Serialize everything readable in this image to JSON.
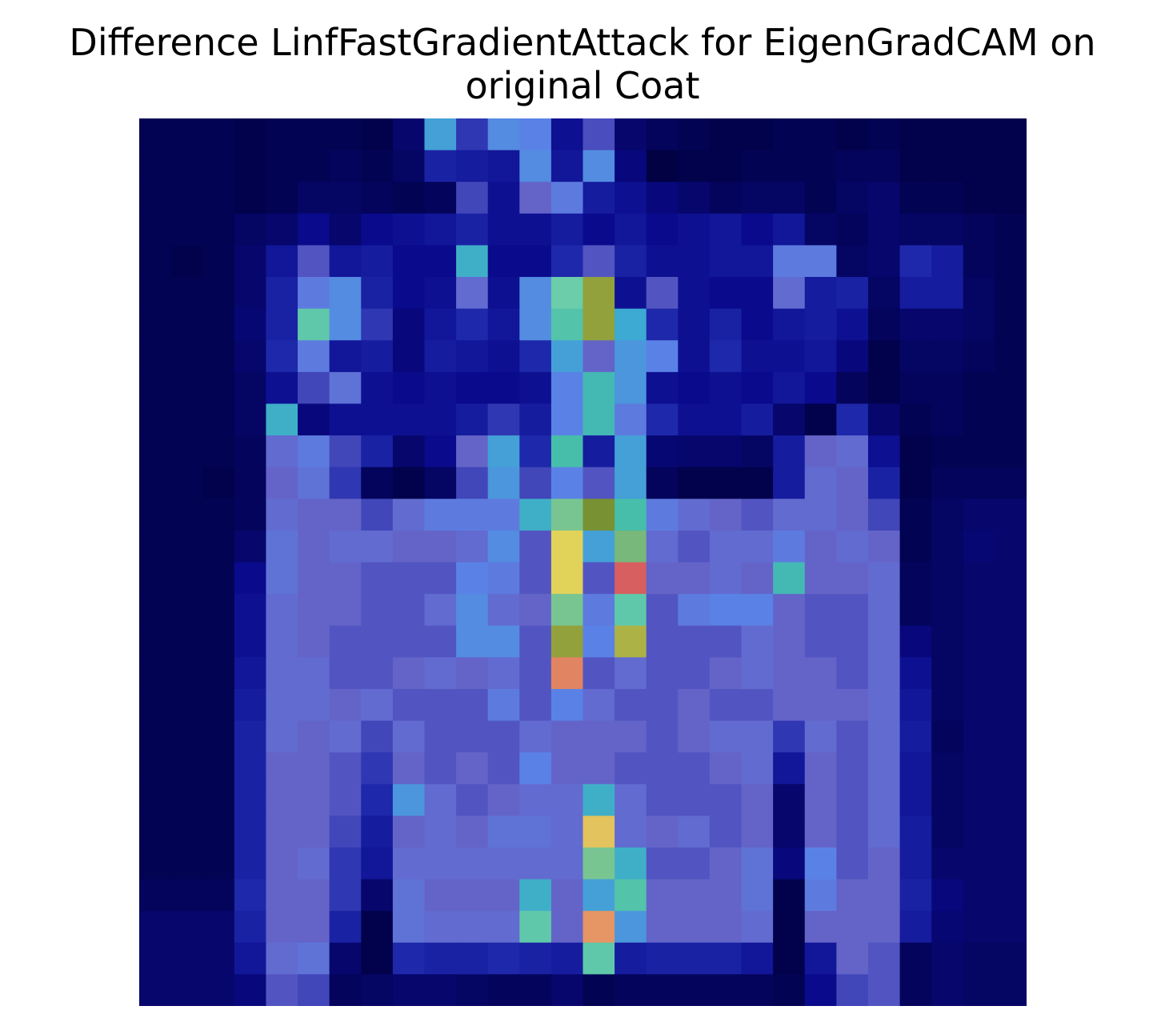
{
  "title": "Difference LinfFastGradientAttack for EigenGradCAM on\noriginal Coat",
  "chart_data": {
    "type": "heatmap",
    "title": "Difference LinfFastGradientAttack for EigenGradCAM on\noriginal Coat",
    "xlabel": "",
    "ylabel": "",
    "axes_visible": false,
    "grid": false,
    "rows": 28,
    "cols": 28,
    "description_of_encoding": "",
    "values": [
      [
        0.03,
        0.03,
        0.03,
        0.02,
        0.03,
        0.03,
        0.03,
        0.02,
        0.06,
        0.42,
        0.22,
        0.38,
        0.36,
        0.12,
        0.25,
        0.06,
        0.04,
        0.03,
        0.02,
        0.02,
        0.03,
        0.03,
        0.02,
        0.03,
        0.02,
        0.02,
        0.02,
        0.02
      ],
      [
        0.03,
        0.03,
        0.03,
        0.02,
        0.03,
        0.03,
        0.04,
        0.03,
        0.05,
        0.18,
        0.16,
        0.14,
        0.38,
        0.14,
        0.38,
        0.08,
        0.01,
        0.02,
        0.02,
        0.03,
        0.03,
        0.03,
        0.04,
        0.04,
        0.02,
        0.02,
        0.02,
        0.02
      ],
      [
        0.03,
        0.03,
        0.03,
        0.02,
        0.03,
        0.05,
        0.05,
        0.04,
        0.03,
        0.04,
        0.24,
        0.12,
        0.28,
        0.34,
        0.16,
        0.12,
        0.08,
        0.06,
        0.04,
        0.05,
        0.05,
        0.03,
        0.05,
        0.06,
        0.03,
        0.03,
        0.02,
        0.02
      ],
      [
        0.03,
        0.03,
        0.03,
        0.05,
        0.06,
        0.1,
        0.06,
        0.1,
        0.12,
        0.14,
        0.18,
        0.12,
        0.12,
        0.16,
        0.1,
        0.14,
        0.1,
        0.12,
        0.14,
        0.1,
        0.14,
        0.05,
        0.04,
        0.06,
        0.05,
        0.05,
        0.04,
        0.03
      ],
      [
        0.03,
        0.02,
        0.03,
        0.06,
        0.14,
        0.26,
        0.14,
        0.16,
        0.1,
        0.1,
        0.46,
        0.1,
        0.1,
        0.2,
        0.26,
        0.18,
        0.12,
        0.12,
        0.14,
        0.14,
        0.34,
        0.34,
        0.05,
        0.06,
        0.2,
        0.16,
        0.04,
        0.03
      ],
      [
        0.03,
        0.03,
        0.03,
        0.06,
        0.18,
        0.34,
        0.38,
        0.18,
        0.1,
        0.12,
        0.3,
        0.12,
        0.38,
        0.58,
        0.72,
        0.12,
        0.26,
        0.12,
        0.1,
        0.1,
        0.3,
        0.16,
        0.18,
        0.05,
        0.16,
        0.16,
        0.05,
        0.03
      ],
      [
        0.03,
        0.03,
        0.03,
        0.07,
        0.18,
        0.56,
        0.38,
        0.22,
        0.08,
        0.14,
        0.2,
        0.14,
        0.38,
        0.54,
        0.72,
        0.44,
        0.2,
        0.12,
        0.18,
        0.1,
        0.14,
        0.16,
        0.12,
        0.04,
        0.06,
        0.06,
        0.05,
        0.03
      ],
      [
        0.03,
        0.03,
        0.03,
        0.06,
        0.2,
        0.34,
        0.14,
        0.16,
        0.08,
        0.16,
        0.14,
        0.12,
        0.2,
        0.42,
        0.28,
        0.4,
        0.36,
        0.12,
        0.2,
        0.12,
        0.12,
        0.14,
        0.08,
        0.02,
        0.05,
        0.05,
        0.04,
        0.03
      ],
      [
        0.03,
        0.03,
        0.03,
        0.05,
        0.12,
        0.24,
        0.32,
        0.12,
        0.1,
        0.12,
        0.1,
        0.1,
        0.12,
        0.36,
        0.5,
        0.4,
        0.12,
        0.1,
        0.12,
        0.1,
        0.14,
        0.1,
        0.04,
        0.02,
        0.04,
        0.04,
        0.03,
        0.03
      ],
      [
        0.03,
        0.03,
        0.03,
        0.05,
        0.46,
        0.08,
        0.12,
        0.12,
        0.12,
        0.12,
        0.16,
        0.22,
        0.16,
        0.36,
        0.5,
        0.34,
        0.2,
        0.12,
        0.12,
        0.16,
        0.06,
        0.02,
        0.2,
        0.06,
        0.03,
        0.04,
        0.03,
        0.03
      ],
      [
        0.03,
        0.03,
        0.03,
        0.04,
        0.3,
        0.34,
        0.24,
        0.18,
        0.06,
        0.1,
        0.28,
        0.42,
        0.2,
        0.52,
        0.16,
        0.42,
        0.07,
        0.06,
        0.06,
        0.05,
        0.16,
        0.28,
        0.3,
        0.12,
        0.02,
        0.03,
        0.03,
        0.03
      ],
      [
        0.03,
        0.03,
        0.02,
        0.04,
        0.28,
        0.32,
        0.22,
        0.04,
        0.02,
        0.05,
        0.24,
        0.4,
        0.24,
        0.36,
        0.26,
        0.42,
        0.04,
        0.02,
        0.02,
        0.02,
        0.16,
        0.3,
        0.28,
        0.18,
        0.02,
        0.04,
        0.04,
        0.04
      ],
      [
        0.03,
        0.03,
        0.03,
        0.04,
        0.3,
        0.28,
        0.28,
        0.24,
        0.3,
        0.34,
        0.34,
        0.34,
        0.46,
        0.62,
        0.7,
        0.52,
        0.34,
        0.3,
        0.28,
        0.26,
        0.3,
        0.3,
        0.28,
        0.24,
        0.03,
        0.05,
        0.06,
        0.06
      ],
      [
        0.03,
        0.03,
        0.03,
        0.06,
        0.32,
        0.28,
        0.3,
        0.3,
        0.28,
        0.28,
        0.3,
        0.38,
        0.26,
        0.78,
        0.42,
        0.64,
        0.3,
        0.26,
        0.3,
        0.3,
        0.34,
        0.28,
        0.3,
        0.28,
        0.03,
        0.05,
        0.07,
        0.06
      ],
      [
        0.03,
        0.03,
        0.03,
        0.1,
        0.32,
        0.28,
        0.28,
        0.26,
        0.26,
        0.26,
        0.36,
        0.34,
        0.26,
        0.78,
        0.26,
        0.92,
        0.28,
        0.28,
        0.3,
        0.28,
        0.5,
        0.28,
        0.28,
        0.3,
        0.04,
        0.05,
        0.06,
        0.06
      ],
      [
        0.03,
        0.03,
        0.03,
        0.12,
        0.3,
        0.28,
        0.28,
        0.26,
        0.26,
        0.3,
        0.38,
        0.3,
        0.28,
        0.62,
        0.34,
        0.56,
        0.26,
        0.34,
        0.36,
        0.36,
        0.28,
        0.26,
        0.26,
        0.3,
        0.04,
        0.05,
        0.06,
        0.06
      ],
      [
        0.03,
        0.03,
        0.03,
        0.12,
        0.3,
        0.28,
        0.26,
        0.26,
        0.26,
        0.26,
        0.38,
        0.38,
        0.26,
        0.72,
        0.36,
        0.74,
        0.26,
        0.26,
        0.26,
        0.3,
        0.28,
        0.26,
        0.26,
        0.3,
        0.08,
        0.05,
        0.06,
        0.06
      ],
      [
        0.03,
        0.03,
        0.03,
        0.14,
        0.3,
        0.3,
        0.26,
        0.26,
        0.28,
        0.3,
        0.28,
        0.3,
        0.26,
        0.88,
        0.26,
        0.3,
        0.26,
        0.26,
        0.28,
        0.3,
        0.28,
        0.28,
        0.26,
        0.3,
        0.12,
        0.05,
        0.06,
        0.06
      ],
      [
        0.03,
        0.03,
        0.03,
        0.16,
        0.3,
        0.3,
        0.28,
        0.3,
        0.26,
        0.26,
        0.26,
        0.34,
        0.26,
        0.36,
        0.3,
        0.26,
        0.26,
        0.28,
        0.26,
        0.26,
        0.28,
        0.28,
        0.28,
        0.3,
        0.14,
        0.05,
        0.06,
        0.06
      ],
      [
        0.03,
        0.03,
        0.03,
        0.18,
        0.3,
        0.28,
        0.3,
        0.24,
        0.3,
        0.26,
        0.26,
        0.26,
        0.3,
        0.28,
        0.28,
        0.28,
        0.26,
        0.28,
        0.3,
        0.3,
        0.22,
        0.3,
        0.26,
        0.3,
        0.16,
        0.04,
        0.06,
        0.06
      ],
      [
        0.03,
        0.03,
        0.03,
        0.18,
        0.28,
        0.28,
        0.26,
        0.22,
        0.28,
        0.26,
        0.28,
        0.26,
        0.36,
        0.28,
        0.28,
        0.26,
        0.26,
        0.26,
        0.28,
        0.3,
        0.14,
        0.28,
        0.26,
        0.3,
        0.14,
        0.05,
        0.06,
        0.06
      ],
      [
        0.03,
        0.03,
        0.03,
        0.18,
        0.28,
        0.28,
        0.26,
        0.2,
        0.4,
        0.3,
        0.26,
        0.28,
        0.3,
        0.3,
        0.46,
        0.3,
        0.26,
        0.26,
        0.26,
        0.28,
        0.06,
        0.28,
        0.26,
        0.3,
        0.14,
        0.05,
        0.06,
        0.06
      ],
      [
        0.03,
        0.03,
        0.03,
        0.18,
        0.28,
        0.28,
        0.24,
        0.16,
        0.28,
        0.3,
        0.28,
        0.32,
        0.32,
        0.3,
        0.8,
        0.3,
        0.28,
        0.3,
        0.26,
        0.28,
        0.06,
        0.28,
        0.26,
        0.3,
        0.16,
        0.05,
        0.06,
        0.06
      ],
      [
        0.03,
        0.03,
        0.03,
        0.18,
        0.28,
        0.3,
        0.22,
        0.14,
        0.3,
        0.3,
        0.3,
        0.3,
        0.3,
        0.3,
        0.62,
        0.46,
        0.26,
        0.26,
        0.28,
        0.32,
        0.08,
        0.36,
        0.26,
        0.28,
        0.16,
        0.06,
        0.06,
        0.06
      ],
      [
        0.04,
        0.04,
        0.04,
        0.2,
        0.28,
        0.28,
        0.22,
        0.06,
        0.32,
        0.28,
        0.28,
        0.28,
        0.46,
        0.28,
        0.42,
        0.54,
        0.28,
        0.28,
        0.28,
        0.32,
        0.02,
        0.34,
        0.28,
        0.28,
        0.18,
        0.08,
        0.06,
        0.06
      ],
      [
        0.06,
        0.06,
        0.06,
        0.18,
        0.28,
        0.28,
        0.18,
        0.02,
        0.32,
        0.3,
        0.3,
        0.3,
        0.56,
        0.28,
        0.86,
        0.4,
        0.28,
        0.28,
        0.28,
        0.3,
        0.02,
        0.28,
        0.28,
        0.28,
        0.16,
        0.07,
        0.06,
        0.06
      ],
      [
        0.06,
        0.06,
        0.06,
        0.14,
        0.3,
        0.32,
        0.06,
        0.02,
        0.2,
        0.18,
        0.18,
        0.2,
        0.18,
        0.16,
        0.56,
        0.16,
        0.18,
        0.18,
        0.18,
        0.14,
        0.02,
        0.14,
        0.28,
        0.26,
        0.04,
        0.06,
        0.05,
        0.05
      ],
      [
        0.06,
        0.06,
        0.06,
        0.08,
        0.26,
        0.24,
        0.04,
        0.05,
        0.06,
        0.06,
        0.05,
        0.04,
        0.04,
        0.06,
        0.03,
        0.04,
        0.04,
        0.04,
        0.04,
        0.04,
        0.03,
        0.1,
        0.24,
        0.26,
        0.04,
        0.06,
        0.05,
        0.05
      ]
    ]
  }
}
